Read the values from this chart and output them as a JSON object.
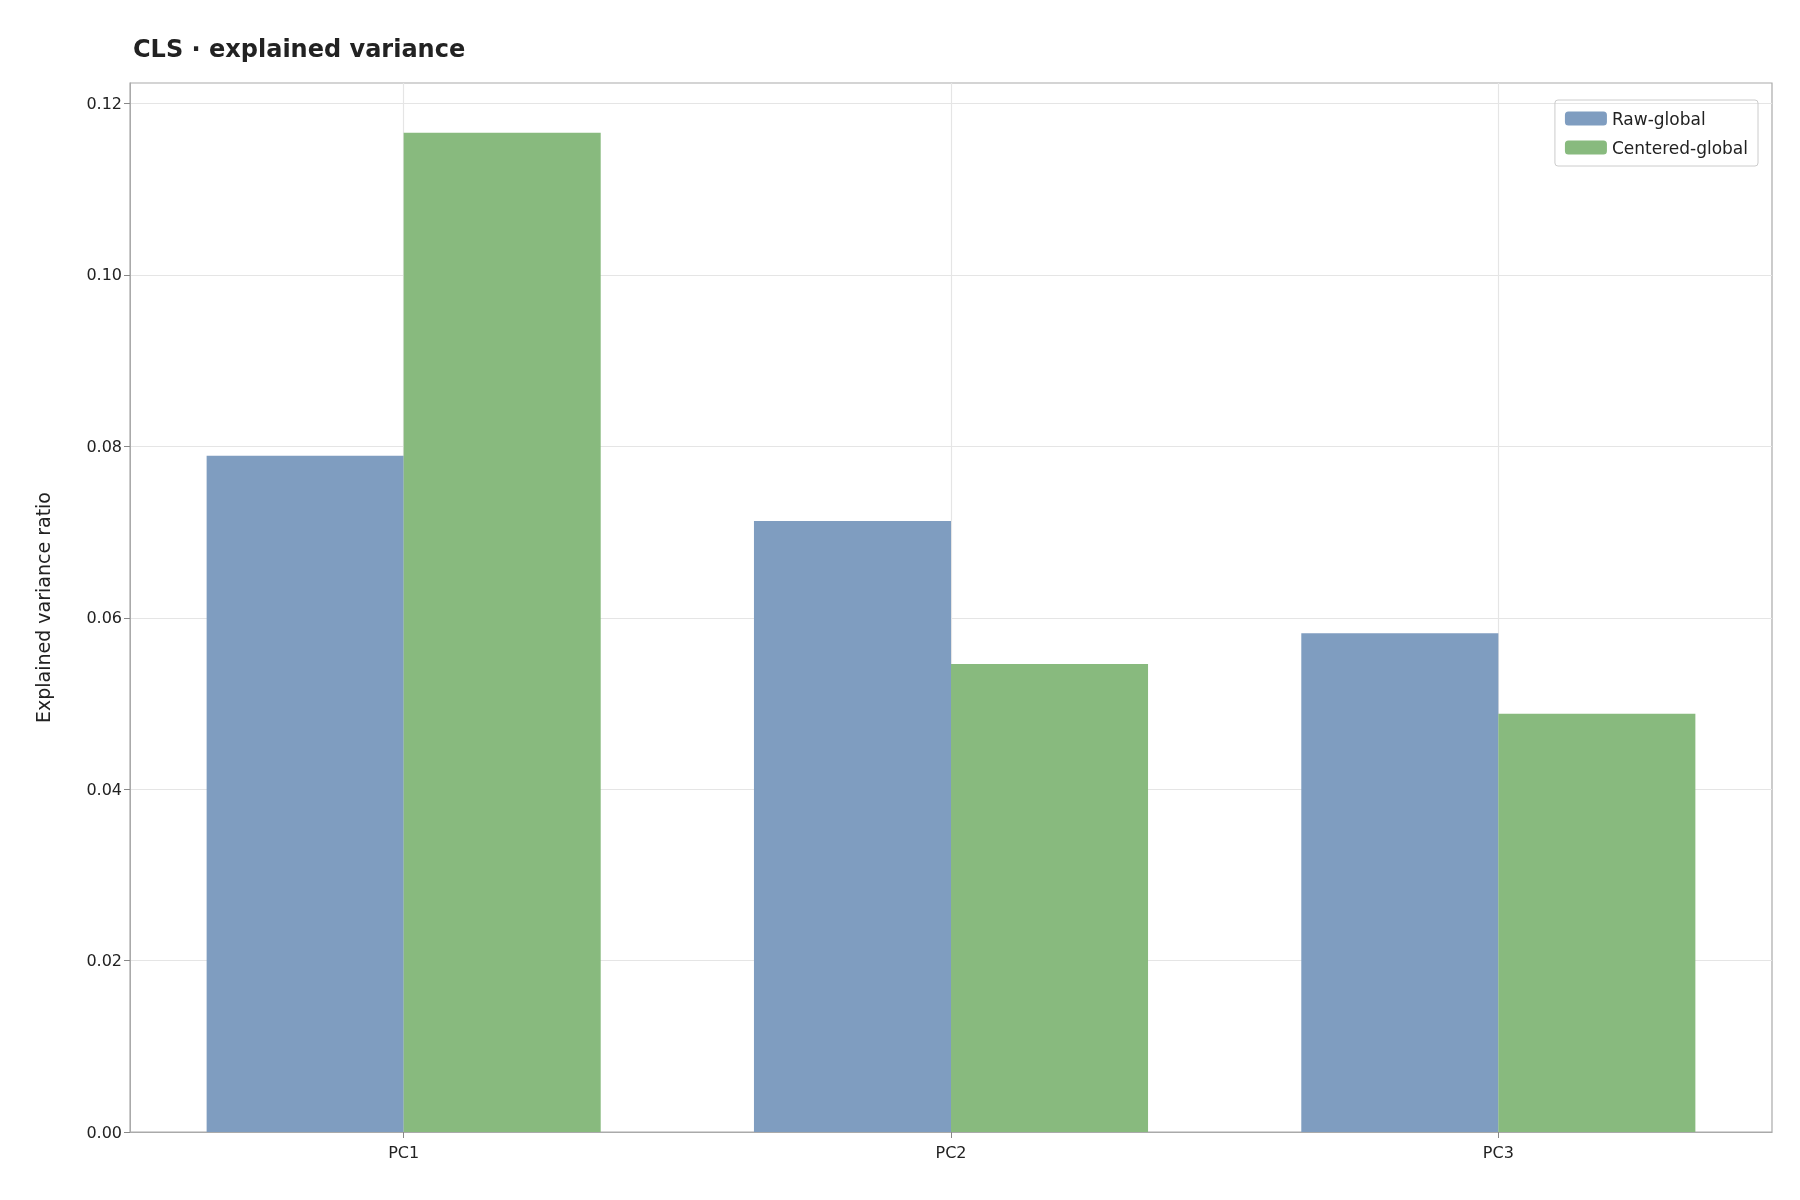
{
  "chart_data": {
    "type": "bar",
    "title": "CLS · explained variance",
    "ylabel": "Explained variance ratio",
    "categories": [
      "PC1",
      "PC2",
      "PC3"
    ],
    "series": [
      {
        "name": "Raw-global",
        "color": "#7f9dc0",
        "values": [
          0.0789,
          0.0713,
          0.0582
        ]
      },
      {
        "name": "Centered-global",
        "color": "#88ba7e",
        "values": [
          0.1166,
          0.0546,
          0.0488
        ]
      }
    ],
    "ylim": [
      0,
      0.1224
    ],
    "yticks": [
      {
        "value": 0,
        "label": "0.00"
      },
      0.02,
      0.04,
      0.06,
      0.08,
      {
        "value": 0.1,
        "label": "0.10"
      },
      0.12
    ],
    "grid": true,
    "legend": "top right"
  }
}
